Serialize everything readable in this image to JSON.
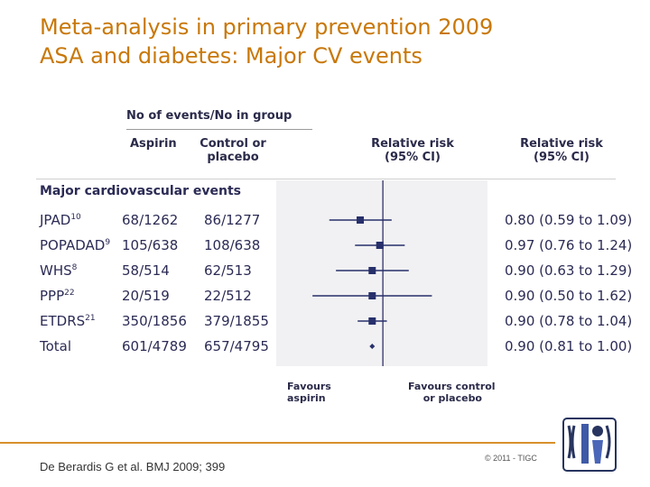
{
  "title": {
    "line1": "Meta-analysis in primary prevention 2009",
    "line2": "ASA and diabetes: Major CV events"
  },
  "footer": {
    "citation": "De Berardis G et al. BMJ 2009; 399",
    "copyright": "© 2011 - TIGC"
  },
  "chart_data": {
    "type": "forest",
    "section_label": "Major cardiovascular events",
    "column_headers": {
      "group": "No of events/No in group",
      "aspirin": "Aspirin",
      "control_line1": "Control or",
      "control_line2": "placebo",
      "rr_line1": "Relative risk",
      "rr_line2": "(95% CI)"
    },
    "axis": {
      "scale": "log",
      "reference_value": 1,
      "favours_left_line1": "Favours",
      "favours_left_line2": "aspirin",
      "favours_right_line1": "Favours control",
      "favours_right_line2": "or placebo"
    },
    "studies": [
      {
        "name": "JPAD",
        "ref": "10",
        "aspirin": "68/1262",
        "control": "86/1277",
        "rr": 0.8,
        "lo": 0.59,
        "hi": 1.09,
        "label": "0.80 (0.59 to 1.09)"
      },
      {
        "name": "POPADAD",
        "ref": "9",
        "aspirin": "105/638",
        "control": "108/638",
        "rr": 0.97,
        "lo": 0.76,
        "hi": 1.24,
        "label": "0.97 (0.76 to 1.24)"
      },
      {
        "name": "WHS",
        "ref": "8",
        "aspirin": "58/514",
        "control": "62/513",
        "rr": 0.9,
        "lo": 0.63,
        "hi": 1.29,
        "label": "0.90 (0.63 to 1.29)"
      },
      {
        "name": "PPP",
        "ref": "22",
        "aspirin": "20/519",
        "control": "22/512",
        "rr": 0.9,
        "lo": 0.5,
        "hi": 1.62,
        "label": "0.90 (0.50 to 1.62)"
      },
      {
        "name": "ETDRS",
        "ref": "21",
        "aspirin": "350/1856",
        "control": "379/1855",
        "rr": 0.9,
        "lo": 0.78,
        "hi": 1.04,
        "label": "0.90 (0.78 to 1.04)"
      },
      {
        "name": "Total",
        "ref": "",
        "aspirin": "601/4789",
        "control": "657/4795",
        "rr": 0.9,
        "lo": 0.81,
        "hi": 1.0,
        "label": "0.90 (0.81 to 1.00)",
        "is_total": true
      }
    ]
  }
}
